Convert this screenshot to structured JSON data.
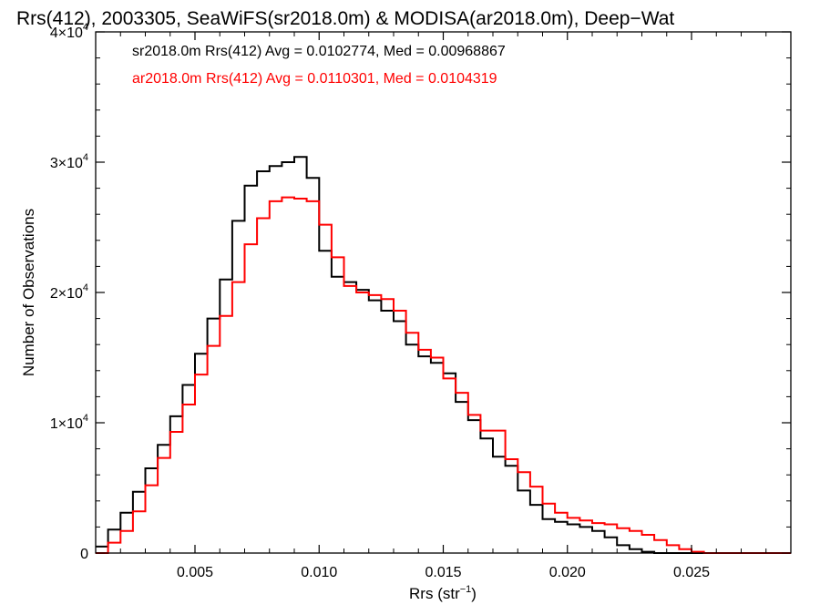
{
  "chart_data": {
    "type": "line",
    "title": "Rrs(412), 2003305, SeaWiFS(sr2018.0m) & MODISA(ar2018.0m), Deep−Wat",
    "xlabel": "Rrs (str",
    "xlabel_sup": "−1",
    "xlabel_end": ")",
    "ylabel": "Number of Observations",
    "xlim": [
      0.001,
      0.029
    ],
    "ylim": [
      0,
      40000
    ],
    "x_ticks": [
      {
        "value": 0.005,
        "label": "0.005"
      },
      {
        "value": 0.01,
        "label": "0.010"
      },
      {
        "value": 0.015,
        "label": "0.015"
      },
      {
        "value": 0.02,
        "label": "0.020"
      },
      {
        "value": 0.025,
        "label": "0.025"
      }
    ],
    "y_ticks": [
      {
        "value": 0,
        "base": "0",
        "exp": ""
      },
      {
        "value": 10000,
        "base": "1×10",
        "exp": "4"
      },
      {
        "value": 20000,
        "base": "2×10",
        "exp": "4"
      },
      {
        "value": 30000,
        "base": "3×10",
        "exp": "4"
      },
      {
        "value": 40000,
        "base": "4×10",
        "exp": "4"
      }
    ],
    "grid": false,
    "legend_position": "top-left",
    "series": [
      {
        "name": "sr2018.0m Rrs(412) Avg = 0.0102774, Med = 0.00968867",
        "color": "#000000",
        "x": [
          0.001,
          0.0015,
          0.002,
          0.0025,
          0.003,
          0.0035,
          0.004,
          0.0045,
          0.005,
          0.0055,
          0.006,
          0.0065,
          0.007,
          0.0075,
          0.008,
          0.0085,
          0.009,
          0.0095,
          0.01,
          0.0105,
          0.011,
          0.0115,
          0.012,
          0.0125,
          0.013,
          0.0135,
          0.014,
          0.0145,
          0.015,
          0.0155,
          0.016,
          0.0165,
          0.017,
          0.0175,
          0.018,
          0.0185,
          0.019,
          0.0195,
          0.02,
          0.0205,
          0.021,
          0.0215,
          0.022,
          0.0225,
          0.023,
          0.0235,
          0.024,
          0.0245,
          0.025,
          0.0255,
          0.026,
          0.027,
          0.029
        ],
        "y": [
          500,
          1800,
          3100,
          4700,
          6500,
          8300,
          10500,
          12900,
          15300,
          18000,
          21000,
          25500,
          28200,
          29300,
          29700,
          30000,
          30400,
          28800,
          23200,
          21200,
          20800,
          20200,
          19400,
          18600,
          17800,
          16000,
          15100,
          14600,
          13800,
          11600,
          10200,
          8800,
          7400,
          6700,
          4800,
          3700,
          2600,
          2400,
          2200,
          2000,
          1700,
          1200,
          600,
          300,
          100,
          0,
          0,
          0,
          0,
          0,
          0,
          0,
          0
        ]
      },
      {
        "name": "ar2018.0m Rrs(412) Avg = 0.0110301, Med = 0.0104319",
        "color": "#ff0000",
        "x": [
          0.001,
          0.0015,
          0.002,
          0.0025,
          0.003,
          0.0035,
          0.004,
          0.0045,
          0.005,
          0.0055,
          0.006,
          0.0065,
          0.007,
          0.0075,
          0.008,
          0.0085,
          0.009,
          0.0095,
          0.01,
          0.0105,
          0.011,
          0.0115,
          0.012,
          0.0125,
          0.013,
          0.0135,
          0.014,
          0.0145,
          0.015,
          0.0155,
          0.016,
          0.0165,
          0.017,
          0.0175,
          0.018,
          0.0185,
          0.019,
          0.0195,
          0.02,
          0.0205,
          0.021,
          0.0215,
          0.022,
          0.0225,
          0.023,
          0.0235,
          0.024,
          0.0245,
          0.025,
          0.0255,
          0.026,
          0.0265,
          0.027,
          0.028,
          0.029
        ],
        "y": [
          0,
          800,
          1700,
          3200,
          5200,
          7300,
          9300,
          11400,
          13700,
          15900,
          18200,
          20800,
          23700,
          25700,
          27000,
          27300,
          27200,
          27000,
          25200,
          22700,
          20500,
          20000,
          19800,
          19500,
          18600,
          16900,
          15600,
          15000,
          13400,
          12300,
          10600,
          9400,
          9400,
          7200,
          6200,
          5100,
          3800,
          3100,
          2700,
          2500,
          2300,
          2200,
          1900,
          1700,
          1400,
          1000,
          600,
          300,
          100,
          0,
          0,
          0,
          0,
          0,
          0
        ]
      }
    ]
  }
}
